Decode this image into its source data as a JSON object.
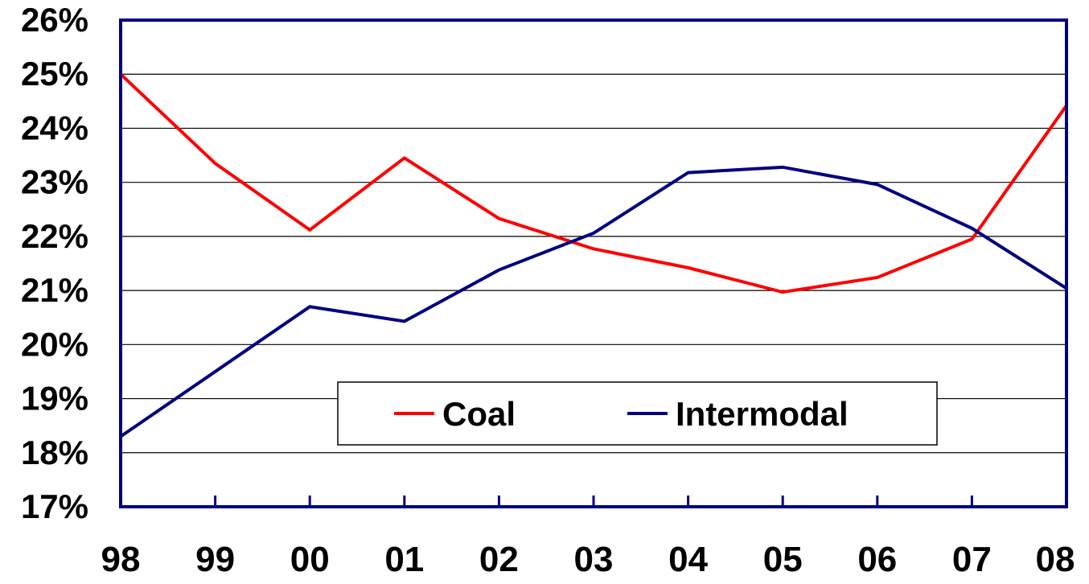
{
  "chart_data": {
    "type": "line",
    "categories": [
      "98",
      "99",
      "00",
      "01",
      "02",
      "03",
      "04",
      "05",
      "06",
      "07",
      "08"
    ],
    "series": [
      {
        "name": "Coal",
        "color": "#ff0000",
        "values": [
          25.0,
          23.35,
          22.12,
          23.45,
          22.33,
          21.77,
          21.42,
          20.97,
          21.24,
          21.95,
          24.42
        ]
      },
      {
        "name": "Intermodal",
        "color": "#000080",
        "values": [
          18.3,
          19.5,
          20.7,
          20.43,
          21.38,
          22.06,
          23.18,
          23.28,
          22.96,
          22.15,
          21.04
        ]
      }
    ],
    "y_ticks": [
      "17%",
      "18%",
      "19%",
      "20%",
      "21%",
      "22%",
      "23%",
      "24%",
      "25%",
      "26%"
    ],
    "ylim": [
      17,
      26
    ],
    "grid": true,
    "legend": {
      "placement": "bottom-center",
      "frame_color": "#000000"
    },
    "axis_color": "#000080",
    "gridline_color": "#000000"
  }
}
